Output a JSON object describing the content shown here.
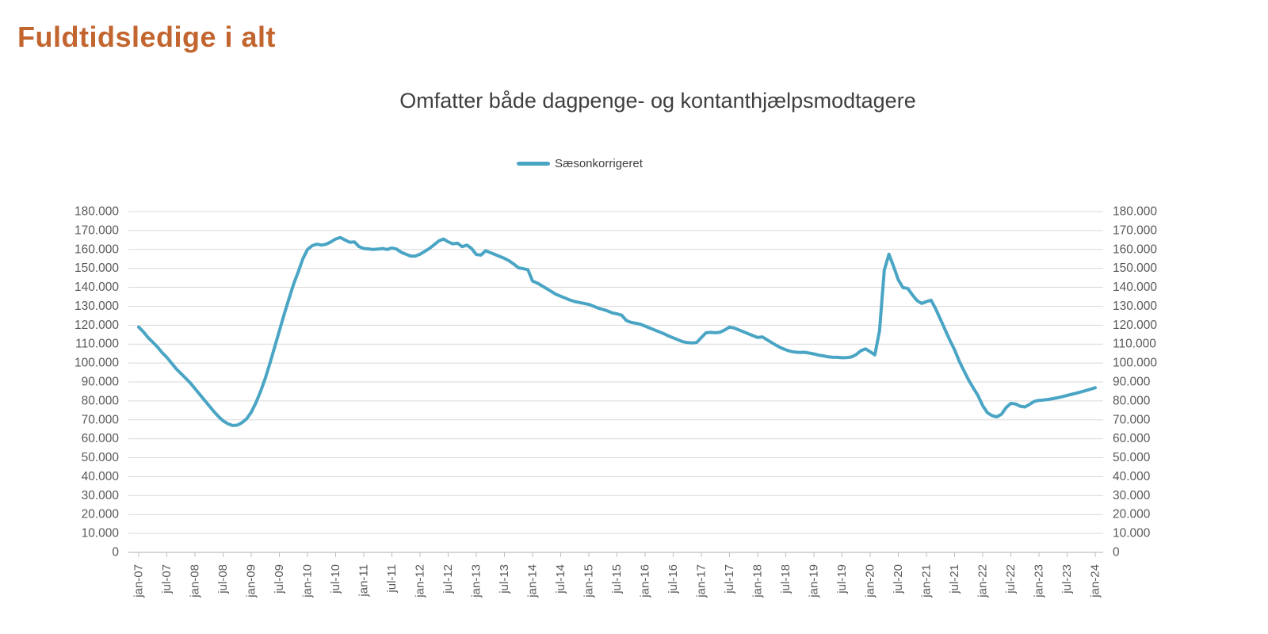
{
  "page": {
    "title": "Fuldtidsledige i alt"
  },
  "colors": {
    "title": "#C2652F",
    "subtitle": "#3F3F3F",
    "series": "#4AA5C5",
    "gridline": "#D9D9D9",
    "axis_line": "#BFBFBF",
    "tick_label": "#595959"
  },
  "chart_data": {
    "type": "line",
    "title": "Omfatter både dagpenge- og kontanthjælpsmodtagere",
    "legend": {
      "position": "top-center",
      "entries": [
        {
          "label": "Sæsonkorrigeret",
          "color": "#4AA5C5"
        }
      ]
    },
    "grid": true,
    "ylim": [
      0,
      180000
    ],
    "ytick_step": 10000,
    "ytick_labels": [
      "0",
      "10.000",
      "20.000",
      "30.000",
      "40.000",
      "50.000",
      "60.000",
      "70.000",
      "80.000",
      "90.000",
      "100.000",
      "110.000",
      "120.000",
      "130.000",
      "140.000",
      "150.000",
      "160.000",
      "170.000",
      "180.000"
    ],
    "y_axis_sides": [
      "left",
      "right"
    ],
    "x_tick_labels": [
      "jan-07",
      "jul-07",
      "jan-08",
      "jul-08",
      "jan-09",
      "jul-09",
      "jan-10",
      "jul-10",
      "jan-11",
      "jul-11",
      "jan-12",
      "jul-12",
      "jan-13",
      "jul-13",
      "jan-14",
      "jul-14",
      "jan-15",
      "jul-15",
      "jan-16",
      "jul-16",
      "jan-17",
      "jul-17",
      "jan-18",
      "jul-18",
      "jan-19",
      "jul-19",
      "jan-20",
      "jul-20",
      "jan-21",
      "jul-21",
      "jan-22",
      "jul-22",
      "jan-23",
      "jul-23",
      "jan-24"
    ],
    "points_per_xtick": 6,
    "x_start_label": "jan-07",
    "x_end_label": "jan-24",
    "series": [
      {
        "name": "Sæsonkorrigeret",
        "color": "#4AA5C5",
        "frequency": "monthly",
        "values": [
          119000,
          116500,
          113500,
          111000,
          108500,
          105500,
          103000,
          100000,
          97000,
          94500,
          92000,
          89500,
          86500,
          83500,
          80500,
          77500,
          74500,
          71800,
          69500,
          68000,
          67000,
          67200,
          68500,
          70500,
          74000,
          79000,
          85000,
          92000,
          100000,
          108500,
          117000,
          125500,
          133500,
          141500,
          148000,
          155000,
          160000,
          162000,
          162800,
          162300,
          162800,
          164000,
          165500,
          166300,
          165000,
          163800,
          164000,
          161500,
          160500,
          160300,
          160000,
          160200,
          160500,
          160000,
          160800,
          160200,
          158500,
          157500,
          156500,
          156500,
          157500,
          159000,
          160500,
          162500,
          164500,
          165500,
          164000,
          163000,
          163300,
          161500,
          162300,
          160500,
          157300,
          157000,
          159300,
          158300,
          157300,
          156300,
          155300,
          154000,
          152300,
          150300,
          149800,
          149300,
          143300,
          142300,
          140800,
          139300,
          137800,
          136300,
          135300,
          134300,
          133300,
          132500,
          132000,
          131500,
          131000,
          130000,
          129000,
          128300,
          127500,
          126500,
          126000,
          125300,
          122500,
          121500,
          121000,
          120500,
          119500,
          118500,
          117500,
          116500,
          115500,
          114300,
          113300,
          112300,
          111300,
          110800,
          110600,
          110900,
          113500,
          116000,
          116200,
          116000,
          116300,
          117500,
          119000,
          118500,
          117500,
          116500,
          115500,
          114500,
          113500,
          113800,
          112300,
          110800,
          109300,
          108000,
          107000,
          106200,
          105800,
          105600,
          105700,
          105300,
          104800,
          104200,
          103800,
          103300,
          103100,
          103000,
          102800,
          102900,
          103200,
          104500,
          106500,
          107500,
          106000,
          104300,
          117000,
          149000,
          157500,
          151000,
          144000,
          139800,
          139500,
          136000,
          133000,
          131500,
          132500,
          133200,
          128500,
          123000,
          117500,
          112000,
          107000,
          101000,
          96000,
          91000,
          86800,
          82800,
          77500,
          73800,
          72200,
          71600,
          73000,
          76500,
          78700,
          78400,
          77200,
          76800,
          78200,
          79800,
          80300,
          80500,
          80800,
          81200,
          81700,
          82300,
          82900,
          83500,
          84100,
          84800,
          85500,
          86200,
          87000
        ]
      }
    ]
  }
}
